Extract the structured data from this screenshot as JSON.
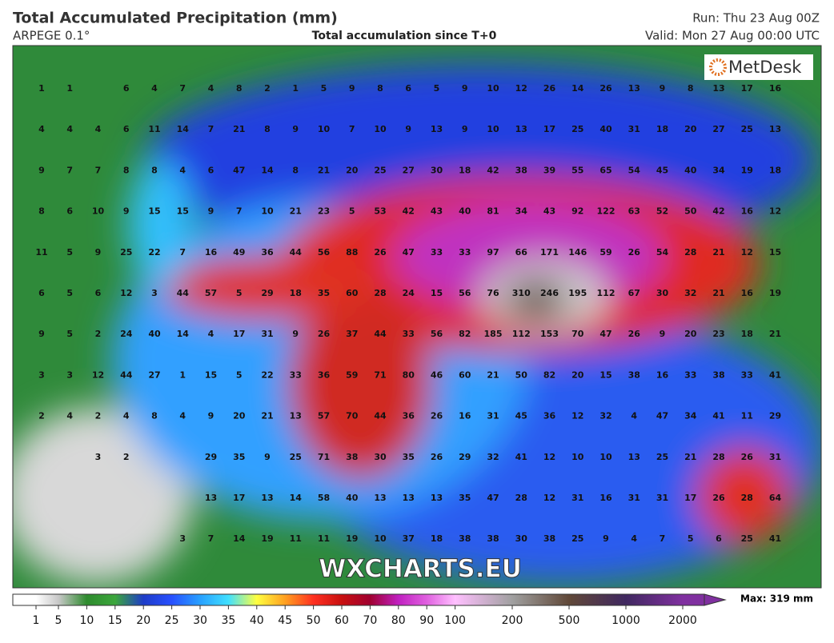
{
  "header": {
    "title": "Total Accumulated Precipitation (mm)",
    "model": "ARPEGE 0.1°",
    "subtitle": "Total accumulation since T+0",
    "run": "Run: Thu 23 Aug 00Z",
    "valid": "Valid: Mon 27 Aug 00:00 UTC"
  },
  "logo": "MetDesk",
  "watermark": "WXCHARTS.EU",
  "grid": {
    "rows": [
      [
        1,
        1,
        null,
        6,
        4,
        7,
        4,
        8,
        2,
        1,
        5,
        9,
        8,
        6,
        5,
        9,
        10,
        12,
        26,
        14,
        26,
        13,
        9,
        8,
        13,
        17,
        16
      ],
      [
        4,
        4,
        4,
        6,
        11,
        14,
        7,
        21,
        8,
        9,
        10,
        7,
        10,
        9,
        13,
        9,
        10,
        13,
        17,
        25,
        40,
        31,
        18,
        20,
        27,
        25,
        13
      ],
      [
        9,
        7,
        7,
        8,
        8,
        4,
        6,
        47,
        14,
        8,
        21,
        20,
        25,
        27,
        30,
        18,
        42,
        38,
        39,
        55,
        65,
        54,
        45,
        40,
        34,
        19,
        18
      ],
      [
        8,
        6,
        10,
        9,
        15,
        15,
        9,
        7,
        10,
        21,
        23,
        5,
        53,
        42,
        43,
        40,
        81,
        34,
        43,
        92,
        122,
        63,
        52,
        50,
        42,
        16,
        12
      ],
      [
        11,
        5,
        9,
        25,
        22,
        7,
        16,
        49,
        36,
        44,
        56,
        88,
        26,
        47,
        33,
        33,
        97,
        66,
        171,
        146,
        59,
        26,
        54,
        28,
        21,
        12,
        15
      ],
      [
        6,
        5,
        6,
        12,
        3,
        44,
        57,
        5,
        29,
        18,
        35,
        60,
        28,
        24,
        15,
        56,
        76,
        310,
        246,
        195,
        112,
        67,
        30,
        32,
        21,
        16,
        19
      ],
      [
        9,
        5,
        2,
        24,
        40,
        14,
        4,
        17,
        31,
        9,
        26,
        37,
        44,
        33,
        56,
        82,
        185,
        112,
        153,
        70,
        47,
        26,
        9,
        20,
        23,
        18,
        21
      ],
      [
        3,
        3,
        12,
        44,
        27,
        1,
        15,
        5,
        22,
        33,
        36,
        59,
        71,
        80,
        46,
        60,
        21,
        50,
        82,
        20,
        15,
        38,
        16,
        33,
        38,
        33,
        41
      ],
      [
        2,
        4,
        2,
        4,
        8,
        4,
        9,
        20,
        21,
        13,
        57,
        70,
        44,
        36,
        26,
        16,
        31,
        45,
        36,
        12,
        32,
        4,
        47,
        34,
        41,
        11,
        29
      ],
      [
        null,
        null,
        3,
        2,
        null,
        null,
        29,
        35,
        9,
        25,
        71,
        38,
        30,
        35,
        26,
        29,
        32,
        41,
        12,
        10,
        10,
        13,
        25,
        21,
        28,
        26,
        31
      ],
      [
        null,
        null,
        null,
        null,
        null,
        null,
        13,
        17,
        13,
        14,
        58,
        40,
        13,
        13,
        13,
        35,
        47,
        28,
        12,
        31,
        16,
        31,
        31,
        17,
        26,
        28,
        64
      ],
      [
        null,
        null,
        null,
        null,
        null,
        3,
        7,
        14,
        19,
        11,
        11,
        19,
        10,
        37,
        18,
        38,
        38,
        30,
        38,
        25,
        9,
        4,
        7,
        5,
        6,
        25,
        41
      ]
    ]
  },
  "colorbar": {
    "labels": [
      1,
      5,
      10,
      15,
      20,
      25,
      30,
      35,
      40,
      45,
      50,
      60,
      70,
      80,
      90,
      100,
      200,
      500,
      1000,
      2000
    ],
    "colors": [
      "#ffffff",
      "#c8c8c8",
      "#2e8b2e",
      "#3ca63c",
      "#1e3cc8",
      "#2850ff",
      "#28a0ff",
      "#40e0ff",
      "#ffff40",
      "#ffa020",
      "#ff3020",
      "#c81010",
      "#a00030",
      "#c020c0",
      "#e060e0",
      "#ffc0ff",
      "#a0a0a0",
      "#604838",
      "#402860",
      "#8030a0"
    ],
    "max": "Max: 319 mm"
  }
}
